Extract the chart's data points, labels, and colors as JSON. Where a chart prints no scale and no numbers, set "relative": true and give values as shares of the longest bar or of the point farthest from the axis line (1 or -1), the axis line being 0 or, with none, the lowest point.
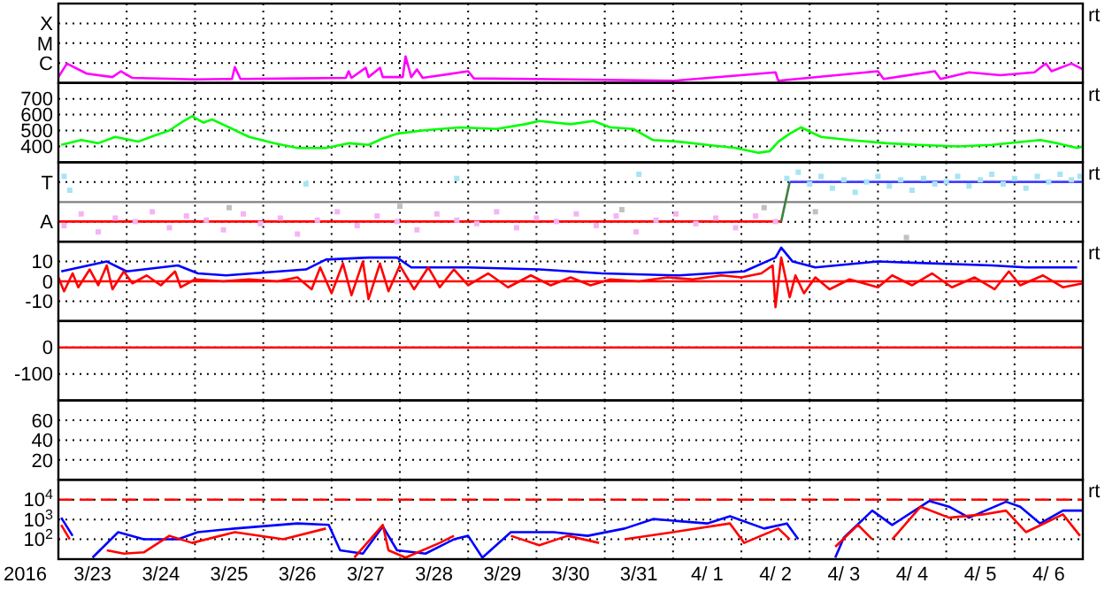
{
  "chart_data": [
    {
      "type": "line",
      "relative": true,
      "xlim": [
        "2016-03-23",
        "2016-04-07"
      ],
      "xticks": [
        {
          "value": "2016-03-24",
          "label": null
        },
        {
          "value": "2016-03-25",
          "label": null
        },
        {
          "value": "2016-03-26",
          "label": null
        },
        {
          "value": "2016-03-27",
          "label": null
        },
        {
          "value": "2016-03-28",
          "label": null
        },
        {
          "value": "2016-03-29",
          "label": null
        },
        {
          "value": "2016-03-30",
          "label": null
        },
        {
          "value": "2016-03-31",
          "label": null
        },
        {
          "value": "2016-04-01",
          "label": null
        },
        {
          "value": "2016-04-02",
          "label": null
        },
        {
          "value": "2016-04-03",
          "label": null
        },
        {
          "value": "2016-04-04",
          "label": null
        },
        {
          "value": "2016-04-05",
          "label": null
        },
        {
          "value": "2016-04-06",
          "label": null
        }
      ],
      "tick_labels": false,
      "grid": true,
      "annotations": [
        "X",
        "M",
        "C",
        "rt"
      ],
      "series": [
        {
          "color": "#ff00ff",
          "x": [
            "2016-03-23T00:00",
            "2016-03-23T03:00",
            "2016-03-23T10:00",
            "2016-03-23T19:00",
            "2016-03-23T22:00",
            "2016-03-24T02:00",
            "2016-03-25T00:00",
            "2016-03-25T13:00",
            "2016-03-25T14:00",
            "2016-03-25T16:00",
            "2016-03-26T12:00",
            "2016-03-27T05:00",
            "2016-03-27T06:00",
            "2016-03-27T07:00",
            "2016-03-27T12:00",
            "2016-03-27T13:00",
            "2016-03-27T17:00",
            "2016-03-27T18:00",
            "2016-03-28T01:00",
            "2016-03-28T02:00",
            "2016-03-28T04:00",
            "2016-03-28T06:00",
            "2016-03-28T08:00",
            "2016-03-29T00:00",
            "2016-03-29T02:00",
            "2016-03-30T12:00",
            "2016-04-01T00:00",
            "2016-04-02T12:00",
            "2016-04-02T13:00",
            "2016-04-04T00:00",
            "2016-04-04T02:00",
            "2016-04-04T20:00",
            "2016-04-04T22:00",
            "2016-04-05T08:00",
            "2016-04-05T19:00",
            "2016-04-06T07:00",
            "2016-04-06T11:00",
            "2016-04-06T13:00",
            "2016-04-06T20:00",
            "2016-04-07T00:00"
          ],
          "values": [
            0.22,
            0.73,
            0.35,
            0.22,
            0.44,
            0.19,
            0.13,
            0.15,
            0.6,
            0.15,
            0.17,
            0.19,
            0.44,
            0.19,
            0.57,
            0.22,
            0.57,
            0.22,
            0.22,
            1,
            0.22,
            0.51,
            0.19,
            0.44,
            0.17,
            0.13,
            0.08,
            0.4,
            0.08,
            0.44,
            0.15,
            0.44,
            0.15,
            0.4,
            0.29,
            0.4,
            0.73,
            0.44,
            0.73,
            0.51
          ]
        }
      ]
    },
    {
      "type": "line",
      "ylim": [
        300,
        800
      ],
      "yticks": [
        400,
        500,
        600,
        700
      ],
      "xlim": [
        "2016-03-23",
        "2016-04-07"
      ],
      "xticks": [
        {
          "value": "2016-03-24",
          "label": null
        },
        {
          "value": "2016-03-25",
          "label": null
        },
        {
          "value": "2016-03-26",
          "label": null
        },
        {
          "value": "2016-03-27",
          "label": null
        },
        {
          "value": "2016-03-28",
          "label": null
        },
        {
          "value": "2016-03-29",
          "label": null
        },
        {
          "value": "2016-03-30",
          "label": null
        },
        {
          "value": "2016-03-31",
          "label": null
        },
        {
          "value": "2016-04-01",
          "label": null
        },
        {
          "value": "2016-04-02",
          "label": null
        },
        {
          "value": "2016-04-03",
          "label": null
        },
        {
          "value": "2016-04-04",
          "label": null
        },
        {
          "value": "2016-04-05",
          "label": null
        },
        {
          "value": "2016-04-06",
          "label": null
        }
      ],
      "tick_labels": "y",
      "grid": true,
      "annotations": [
        "rt"
      ],
      "series": [
        {
          "color": "#00ff00",
          "x": [
            "2016-03-23T01:00",
            "2016-03-23T08:00",
            "2016-03-23T14:00",
            "2016-03-23T20:00",
            "2016-03-24T04:00",
            "2016-03-24T10:00",
            "2016-03-24T15:00",
            "2016-03-24T20:00",
            "2016-03-24T23:00",
            "2016-03-25T03:00",
            "2016-03-25T06:00",
            "2016-03-25T12:00",
            "2016-03-25T19:00",
            "2016-03-26T04:00",
            "2016-03-26T12:00",
            "2016-03-26T22:00",
            "2016-03-27T06:00",
            "2016-03-27T13:00",
            "2016-03-27T18:00",
            "2016-03-27T23:00",
            "2016-03-28T08:00",
            "2016-03-28T21:00",
            "2016-03-29T10:00",
            "2016-03-29T20:00",
            "2016-03-30T01:00",
            "2016-03-30T12:00",
            "2016-03-30T20:00",
            "2016-03-31T02:00",
            "2016-03-31T10:00",
            "2016-03-31T17:00",
            "2016-04-01T02:00",
            "2016-04-01T12:00",
            "2016-04-01T22:00",
            "2016-04-02T06:00",
            "2016-04-02T10:00",
            "2016-04-02T13:00",
            "2016-04-02T17:00",
            "2016-04-02T21:00",
            "2016-04-03T04:00",
            "2016-04-03T14:00",
            "2016-04-04T03:00",
            "2016-04-04T14:00",
            "2016-04-05T04:00",
            "2016-04-05T16:00",
            "2016-04-06T09:00",
            "2016-04-06T15:00",
            "2016-04-06T22:00",
            "2016-04-07T00:00"
          ],
          "values": [
            410,
            440,
            420,
            460,
            430,
            470,
            500,
            560,
            590,
            550,
            570,
            520,
            460,
            420,
            390,
            390,
            420,
            410,
            450,
            480,
            500,
            520,
            510,
            540,
            560,
            540,
            560,
            520,
            510,
            440,
            430,
            410,
            390,
            360,
            370,
            430,
            480,
            520,
            460,
            440,
            420,
            410,
            400,
            410,
            440,
            420,
            390,
            400
          ]
        }
      ]
    },
    {
      "type": "scatter",
      "relative": true,
      "xlim": [
        "2016-03-23",
        "2016-04-07"
      ],
      "xticks": [
        {
          "value": "2016-03-24",
          "label": null
        },
        {
          "value": "2016-03-25",
          "label": null
        },
        {
          "value": "2016-03-26",
          "label": null
        },
        {
          "value": "2016-03-27",
          "label": null
        },
        {
          "value": "2016-03-28",
          "label": null
        },
        {
          "value": "2016-03-29",
          "label": null
        },
        {
          "value": "2016-03-30",
          "label": null
        },
        {
          "value": "2016-03-31",
          "label": null
        },
        {
          "value": "2016-04-01",
          "label": null
        },
        {
          "value": "2016-04-02",
          "label": null
        },
        {
          "value": "2016-04-03",
          "label": null
        },
        {
          "value": "2016-04-04",
          "label": null
        },
        {
          "value": "2016-04-05",
          "label": null
        },
        {
          "value": "2016-04-06",
          "label": null
        }
      ],
      "tick_labels": false,
      "grid": true,
      "annotations": [
        "T",
        "A",
        "rt"
      ],
      "ref_lines": [
        {
          "axis": "y",
          "value": 0.57,
          "color": "#808080"
        }
      ],
      "series": [
        {
          "color": "#f4b4f4",
          "marker": "square",
          "x": [
            "2016-03-23T02:00",
            "2016-03-23T08:00",
            "2016-03-23T14:00",
            "2016-03-23T20:00",
            "2016-03-24T03:00",
            "2016-03-24T09:00",
            "2016-03-24T15:00",
            "2016-03-24T21:00",
            "2016-03-25T04:00",
            "2016-03-25T10:00",
            "2016-03-25T17:00",
            "2016-03-25T23:00",
            "2016-03-26T06:00",
            "2016-03-26T12:00",
            "2016-03-26T19:00",
            "2016-03-27T02:00",
            "2016-03-27T09:00",
            "2016-03-27T16:00",
            "2016-03-27T23:00",
            "2016-03-28T06:00",
            "2016-03-28T13:00",
            "2016-03-28T20:00",
            "2016-03-29T03:00",
            "2016-03-29T10:00",
            "2016-03-29T17:00",
            "2016-03-30T00:00",
            "2016-03-30T07:00",
            "2016-03-30T14:00",
            "2016-03-30T21:00",
            "2016-03-31T04:00",
            "2016-03-31T11:00",
            "2016-03-31T18:00",
            "2016-04-01T01:00",
            "2016-04-01T08:00",
            "2016-04-01T15:00",
            "2016-04-01T22:00",
            "2016-04-02T05:00",
            "2016-04-02T12:00"
          ],
          "values": [
            0.23,
            0.4,
            0.14,
            0.34,
            0.29,
            0.43,
            0.2,
            0.37,
            0.31,
            0.17,
            0.4,
            0.26,
            0.34,
            0.11,
            0.31,
            0.43,
            0.23,
            0.37,
            0.29,
            0.17,
            0.4,
            0.31,
            0.26,
            0.43,
            0.2,
            0.34,
            0.29,
            0.4,
            0.23,
            0.37,
            0.14,
            0.31,
            0.4,
            0.26,
            0.34,
            0.2,
            0.37,
            0.29
          ]
        },
        {
          "color": "#a8e4f4",
          "marker": "square",
          "x": [
            "2016-03-23T02:00",
            "2016-03-23T04:00",
            "2016-03-26T15:00",
            "2016-03-28T20:00",
            "2016-03-31T12:00",
            "2016-04-02T16:00",
            "2016-04-02T20:00",
            "2016-04-03T00:00",
            "2016-04-03T04:00",
            "2016-04-03T08:00",
            "2016-04-03T12:00",
            "2016-04-03T16:00",
            "2016-04-03T20:00",
            "2016-04-04T00:00",
            "2016-04-04T04:00",
            "2016-04-04T08:00",
            "2016-04-04T12:00",
            "2016-04-04T16:00",
            "2016-04-04T20:00",
            "2016-04-05T00:00",
            "2016-04-05T04:00",
            "2016-04-05T08:00",
            "2016-04-05T12:00",
            "2016-04-05T16:00",
            "2016-04-05T20:00",
            "2016-04-06T00:00",
            "2016-04-06T04:00",
            "2016-04-06T08:00",
            "2016-04-06T12:00",
            "2016-04-06T16:00",
            "2016-04-06T20:00",
            "2016-04-06T23:00"
          ],
          "values": [
            0.94,
            0.74,
            0.83,
            0.91,
            0.97,
            0.91,
            1,
            0.83,
            0.94,
            0.77,
            0.89,
            0.71,
            0.86,
            0.94,
            0.8,
            0.89,
            0.74,
            0.91,
            0.83,
            0.86,
            0.94,
            0.8,
            0.89,
            0.97,
            0.83,
            0.91,
            0.77,
            0.94,
            0.86,
            0.97,
            0.89,
            0.94
          ]
        },
        {
          "color": "#c0c0c0",
          "marker": "square",
          "x": [
            "2016-03-25T12:00",
            "2016-03-28T00:00",
            "2016-03-31T06:00",
            "2016-04-02T08:00",
            "2016-04-03T02:00",
            "2016-04-04T10:00"
          ],
          "values": [
            0.49,
            0.51,
            0.46,
            0.49,
            0.43,
            0.06
          ]
        },
        {
          "type": "line",
          "color": "#ff0000",
          "x": [
            "2016-03-23T00:00",
            "2016-04-02T14:00"
          ],
          "values": [
            0.29,
            0.29
          ]
        },
        {
          "type": "line",
          "color": "#408040",
          "x": [
            "2016-04-02T14:00",
            "2016-04-02T17:00"
          ],
          "values": [
            0.29,
            0.86
          ]
        },
        {
          "type": "line",
          "color": "#4040ff",
          "x": [
            "2016-04-02T17:00",
            "2016-04-07T00:00"
          ],
          "values": [
            0.86,
            0.86
          ]
        }
      ]
    },
    {
      "type": "line",
      "ylim": [
        -20,
        20
      ],
      "yticks": [
        10,
        0,
        -10
      ],
      "xlim": [
        "2016-03-23",
        "2016-04-07"
      ],
      "xticks": [
        {
          "value": "2016-03-24",
          "label": null
        },
        {
          "value": "2016-03-25",
          "label": null
        },
        {
          "value": "2016-03-26",
          "label": null
        },
        {
          "value": "2016-03-27",
          "label": null
        },
        {
          "value": "2016-03-28",
          "label": null
        },
        {
          "value": "2016-03-29",
          "label": null
        },
        {
          "value": "2016-03-30",
          "label": null
        },
        {
          "value": "2016-03-31",
          "label": null
        },
        {
          "value": "2016-04-01",
          "label": null
        },
        {
          "value": "2016-04-02",
          "label": null
        },
        {
          "value": "2016-04-03",
          "label": null
        },
        {
          "value": "2016-04-04",
          "label": null
        },
        {
          "value": "2016-04-05",
          "label": null
        },
        {
          "value": "2016-04-06",
          "label": null
        }
      ],
      "tick_labels": "y",
      "grid": true,
      "annotations": [
        "rt"
      ],
      "ref_lines": [
        {
          "axis": "y",
          "value": 0,
          "color": "#ff0000"
        }
      ],
      "series": [
        {
          "color": "#0000ff",
          "x": [
            "2016-03-23T01:00",
            "2016-03-23T17:00",
            "2016-03-24T00:00",
            "2016-03-24T18:00",
            "2016-03-25T01:00",
            "2016-03-25T11:00",
            "2016-03-26T15:00",
            "2016-03-26T22:00",
            "2016-03-27T13:00",
            "2016-03-27T23:00",
            "2016-03-28T04:00",
            "2016-03-29T00:00",
            "2016-03-30T01:00",
            "2016-03-30T23:00",
            "2016-04-01T02:00",
            "2016-04-02T01:00",
            "2016-04-02T12:00",
            "2016-04-02T14:00",
            "2016-04-02T18:00",
            "2016-04-03T02:00",
            "2016-04-04T00:00",
            "2016-04-05T16:00",
            "2016-04-06T04:00",
            "2016-04-06T22:00"
          ],
          "values": [
            5,
            10,
            5,
            8,
            4,
            3,
            6,
            11,
            12,
            12,
            7,
            7,
            6,
            4,
            3,
            5,
            12,
            17,
            10,
            7,
            10,
            8,
            7,
            7
          ]
        },
        {
          "color": "#ff0000",
          "x": [
            "2016-03-23T00:00",
            "2016-03-23T02:00",
            "2016-03-23T05:00",
            "2016-03-23T07:00",
            "2016-03-23T11:00",
            "2016-03-23T14:00",
            "2016-03-23T17:00",
            "2016-03-23T19:00",
            "2016-03-23T23:00",
            "2016-03-24T02:00",
            "2016-03-24T07:00",
            "2016-03-24T12:00",
            "2016-03-24T17:00",
            "2016-03-24T19:00",
            "2016-03-25T00:00",
            "2016-03-25T10:00",
            "2016-03-25T19:00",
            "2016-03-26T05:00",
            "2016-03-26T12:00",
            "2016-03-26T17:00",
            "2016-03-26T20:00",
            "2016-03-27T00:00",
            "2016-03-27T04:00",
            "2016-03-27T07:00",
            "2016-03-27T11:00",
            "2016-03-27T13:00",
            "2016-03-27T17:00",
            "2016-03-27T20:00",
            "2016-03-28T00:00",
            "2016-03-28T05:00",
            "2016-03-28T10:00",
            "2016-03-28T14:00",
            "2016-03-28T19:00",
            "2016-03-29T00:00",
            "2016-03-29T07:00",
            "2016-03-29T14:00",
            "2016-03-29T22:00",
            "2016-03-30T05:00",
            "2016-03-30T12:00",
            "2016-03-30T19:00",
            "2016-03-31T02:00",
            "2016-03-31T12:00",
            "2016-03-31T22:00",
            "2016-04-01T07:00",
            "2016-04-01T17:00",
            "2016-04-02T00:00",
            "2016-04-02T07:00",
            "2016-04-02T11:00",
            "2016-04-02T12:00",
            "2016-04-02T14:00",
            "2016-04-02T17:00",
            "2016-04-02T19:00",
            "2016-04-02T22:00",
            "2016-04-03T02:00",
            "2016-04-03T07:00",
            "2016-04-03T14:00",
            "2016-04-04T00:00",
            "2016-04-04T05:00",
            "2016-04-04T12:00",
            "2016-04-04T19:00",
            "2016-04-05T02:00",
            "2016-04-05T10:00",
            "2016-04-05T17:00",
            "2016-04-05T22:00",
            "2016-04-06T02:00",
            "2016-04-06T10:00",
            "2016-04-06T17:00",
            "2016-04-07T00:00"
          ],
          "values": [
            2,
            -5,
            4,
            -3,
            6,
            -2,
            8,
            -4,
            5,
            -1,
            3,
            -2,
            5,
            -3,
            1,
            0,
            1,
            0,
            2,
            -4,
            7,
            -6,
            9,
            -7,
            10,
            -9,
            9,
            -5,
            8,
            -4,
            7,
            -3,
            6,
            -2,
            4,
            -3,
            3,
            -2,
            2,
            -2,
            1,
            0,
            2,
            1,
            3,
            2,
            4,
            8,
            -13,
            12,
            -8,
            3,
            -6,
            2,
            -4,
            1,
            -3,
            3,
            -2,
            4,
            -3,
            2,
            -4,
            5,
            -2,
            3,
            -3,
            -1
          ]
        }
      ]
    },
    {
      "type": "line",
      "ylim": [
        -200,
        100
      ],
      "yticks": [
        0,
        -100
      ],
      "xlim": [
        "2016-03-23",
        "2016-04-07"
      ],
      "xticks": [
        {
          "value": "2016-03-24",
          "label": null
        },
        {
          "value": "2016-03-25",
          "label": null
        },
        {
          "value": "2016-03-26",
          "label": null
        },
        {
          "value": "2016-03-27",
          "label": null
        },
        {
          "value": "2016-03-28",
          "label": null
        },
        {
          "value": "2016-03-29",
          "label": null
        },
        {
          "value": "2016-03-30",
          "label": null
        },
        {
          "value": "2016-03-31",
          "label": null
        },
        {
          "value": "2016-04-01",
          "label": null
        },
        {
          "value": "2016-04-02",
          "label": null
        },
        {
          "value": "2016-04-03",
          "label": null
        },
        {
          "value": "2016-04-04",
          "label": null
        },
        {
          "value": "2016-04-05",
          "label": null
        },
        {
          "value": "2016-04-06",
          "label": null
        }
      ],
      "tick_labels": "y",
      "grid": true,
      "ref_lines": [
        {
          "axis": "y",
          "value": 0,
          "color": "#ff0000"
        }
      ]
    },
    {
      "type": "line",
      "ylim": [
        0,
        80
      ],
      "yticks": [
        60,
        40,
        20
      ],
      "xlim": [
        "2016-03-23",
        "2016-04-07"
      ],
      "xticks": [
        {
          "value": "2016-03-24",
          "label": null
        },
        {
          "value": "2016-03-25",
          "label": null
        },
        {
          "value": "2016-03-26",
          "label": null
        },
        {
          "value": "2016-03-27",
          "label": null
        },
        {
          "value": "2016-03-28",
          "label": null
        },
        {
          "value": "2016-03-29",
          "label": null
        },
        {
          "value": "2016-03-30",
          "label": null
        },
        {
          "value": "2016-03-31",
          "label": null
        },
        {
          "value": "2016-04-01",
          "label": null
        },
        {
          "value": "2016-04-02",
          "label": null
        },
        {
          "value": "2016-04-03",
          "label": null
        },
        {
          "value": "2016-04-04",
          "label": null
        },
        {
          "value": "2016-04-05",
          "label": null
        },
        {
          "value": "2016-04-06",
          "label": null
        }
      ],
      "tick_labels": "y",
      "grid": true
    },
    {
      "type": "line",
      "ylim": [
        10,
        100000
      ],
      "yticks": [
        {
          "value": 10000,
          "label": "10$^{4}$"
        },
        {
          "value": 1000,
          "label": "10$^{3}$"
        },
        {
          "value": 100,
          "label": "10$^{2}$"
        }
      ],
      "log": "y",
      "xlim": [
        "2016-03-23",
        "2016-04-07"
      ],
      "xlabel": "2016",
      "xticks": [
        {
          "value": "2016-03-24",
          "label": null
        },
        {
          "value": "2016-03-25",
          "label": null
        },
        {
          "value": "2016-03-26",
          "label": null
        },
        {
          "value": "2016-03-27",
          "label": null
        },
        {
          "value": "2016-03-28",
          "label": null
        },
        {
          "value": "2016-03-29",
          "label": null
        },
        {
          "value": "2016-03-30",
          "label": null
        },
        {
          "value": "2016-03-31",
          "label": null
        },
        {
          "value": "2016-04-01",
          "label": null
        },
        {
          "value": "2016-04-02",
          "label": null
        },
        {
          "value": "2016-04-03",
          "label": null
        },
        {
          "value": "2016-04-04",
          "label": null
        },
        {
          "value": "2016-04-05",
          "label": null
        },
        {
          "value": "2016-04-06",
          "label": null
        },
        {
          "value": "2016-03-23T12:00",
          "label": "3/23"
        },
        {
          "value": "2016-03-24T12:00",
          "label": "3/24"
        },
        {
          "value": "2016-03-25T12:00",
          "label": "3/25"
        },
        {
          "value": "2016-03-26T12:00",
          "label": "3/26"
        },
        {
          "value": "2016-03-27T12:00",
          "label": "3/27"
        },
        {
          "value": "2016-03-28T12:00",
          "label": "3/28"
        },
        {
          "value": "2016-03-29T12:00",
          "label": "3/29"
        },
        {
          "value": "2016-03-30T12:00",
          "label": "3/30"
        },
        {
          "value": "2016-03-31T12:00",
          "label": "3/31"
        },
        {
          "value": "2016-04-01T12:00",
          "label": "4/ 1"
        },
        {
          "value": "2016-04-02T12:00",
          "label": "4/ 2"
        },
        {
          "value": "2016-04-03T12:00",
          "label": "4/ 3"
        },
        {
          "value": "2016-04-04T12:00",
          "label": "4/ 4"
        },
        {
          "value": "2016-04-05T12:00",
          "label": "4/ 5"
        },
        {
          "value": "2016-04-06T12:00",
          "label": "4/ 6"
        }
      ],
      "grid": true,
      "annotations": [
        "rt"
      ],
      "ref_lines": [
        {
          "axis": "y",
          "value": 10000,
          "color": "#ff0000",
          "line_style": "dashed"
        }
      ],
      "series": [
        {
          "color": "#0000ff",
          "x": [
            "2016-03-23T01:00",
            "2016-03-23T05:00",
            "2016-03-23T07:00",
            "2016-03-23T12:00",
            "2016-03-23T21:00",
            "2016-03-24T06:00",
            "2016-03-24T18:00",
            "2016-03-25T01:00",
            "2016-03-25T14:00",
            "2016-03-26T12:00",
            "2016-03-26T23:00",
            "2016-03-27T03:00",
            "2016-03-27T11:00",
            "2016-03-27T18:00",
            "2016-03-27T23:00",
            "2016-03-28T09:00",
            "2016-03-28T19:00",
            "2016-03-29T00:00",
            "2016-03-29T05:00",
            "2016-03-29T15:00",
            "2016-03-30T06:00",
            "2016-03-30T18:00",
            "2016-03-31T07:00",
            "2016-03-31T17:00",
            "2016-04-01T12:00",
            "2016-04-01T20:00",
            "2016-04-02T08:00",
            "2016-04-02T16:00",
            "2016-04-02T20:00",
            "2016-04-03T02:00",
            "2016-04-03T09:00",
            "2016-04-03T12:00",
            "2016-04-03T22:00",
            "2016-04-04T05:00",
            "2016-04-04T18:00",
            "2016-04-05T01:00",
            "2016-04-05T08:00",
            "2016-04-05T21:00",
            "2016-04-06T02:00",
            "2016-04-06T09:00",
            "2016-04-06T17:00",
            "2016-04-07T00:00"
          ],
          "values": [
            1230,
            150,
            null,
            12,
            230,
            100,
            100,
            230,
            350,
            630,
            530,
            28,
            19,
            450,
            28,
            19,
            100,
            150,
            12,
            230,
            230,
            150,
            350,
            1050,
            630,
            1450,
            350,
            630,
            100,
            null,
            12,
            120,
            2800,
            530,
            8500,
            4400,
            1230,
            7800,
            4400,
            630,
            2800,
            2800
          ]
        },
        {
          "color": "#ff0000",
          "x": [
            "2016-03-23T01:00",
            "2016-03-23T04:00",
            "2016-03-23T06:00",
            "2016-03-23T17:00",
            "2016-03-23T23:00",
            "2016-03-24T06:00",
            "2016-03-24T15:00",
            "2016-03-24T23:00",
            "2016-03-25T14:00",
            "2016-03-26T07:00",
            "2016-03-26T22:00",
            "2016-03-27T01:00",
            "2016-03-27T08:00",
            "2016-03-27T18:00",
            "2016-03-27T20:00",
            "2016-03-28T02:00",
            "2016-03-28T14:00",
            "2016-03-28T19:00",
            "2016-03-28T23:00",
            "2016-03-29T15:00",
            "2016-03-30T01:00",
            "2016-03-30T11:00",
            "2016-03-30T22:00",
            "2016-03-30T23:00",
            "2016-03-31T07:00",
            "2016-04-01T00:00",
            "2016-04-01T20:00",
            "2016-04-02T01:00",
            "2016-04-02T13:00",
            "2016-04-02T17:00",
            "2016-04-02T21:00",
            "2016-04-03T09:00",
            "2016-04-03T17:00",
            "2016-04-03T22:00",
            "2016-04-04T01:00",
            "2016-04-04T05:00",
            "2016-04-04T15:00",
            "2016-04-05T01:00",
            "2016-04-05T13:00",
            "2016-04-05T21:00",
            "2016-04-06T04:00",
            "2016-04-06T17:00",
            "2016-04-06T23:00"
          ],
          "values": [
            530,
            100,
            null,
            28,
            19,
            22,
            150,
            66,
            230,
            100,
            350,
            null,
            12,
            530,
            28,
            12,
            66,
            150,
            null,
            150,
            50,
            150,
            66,
            null,
            100,
            230,
            630,
            66,
            350,
            100,
            null,
            42,
            530,
            100,
            null,
            100,
            4400,
            1230,
            1800,
            2800,
            230,
            1800,
            150
          ]
        }
      ]
    }
  ]
}
